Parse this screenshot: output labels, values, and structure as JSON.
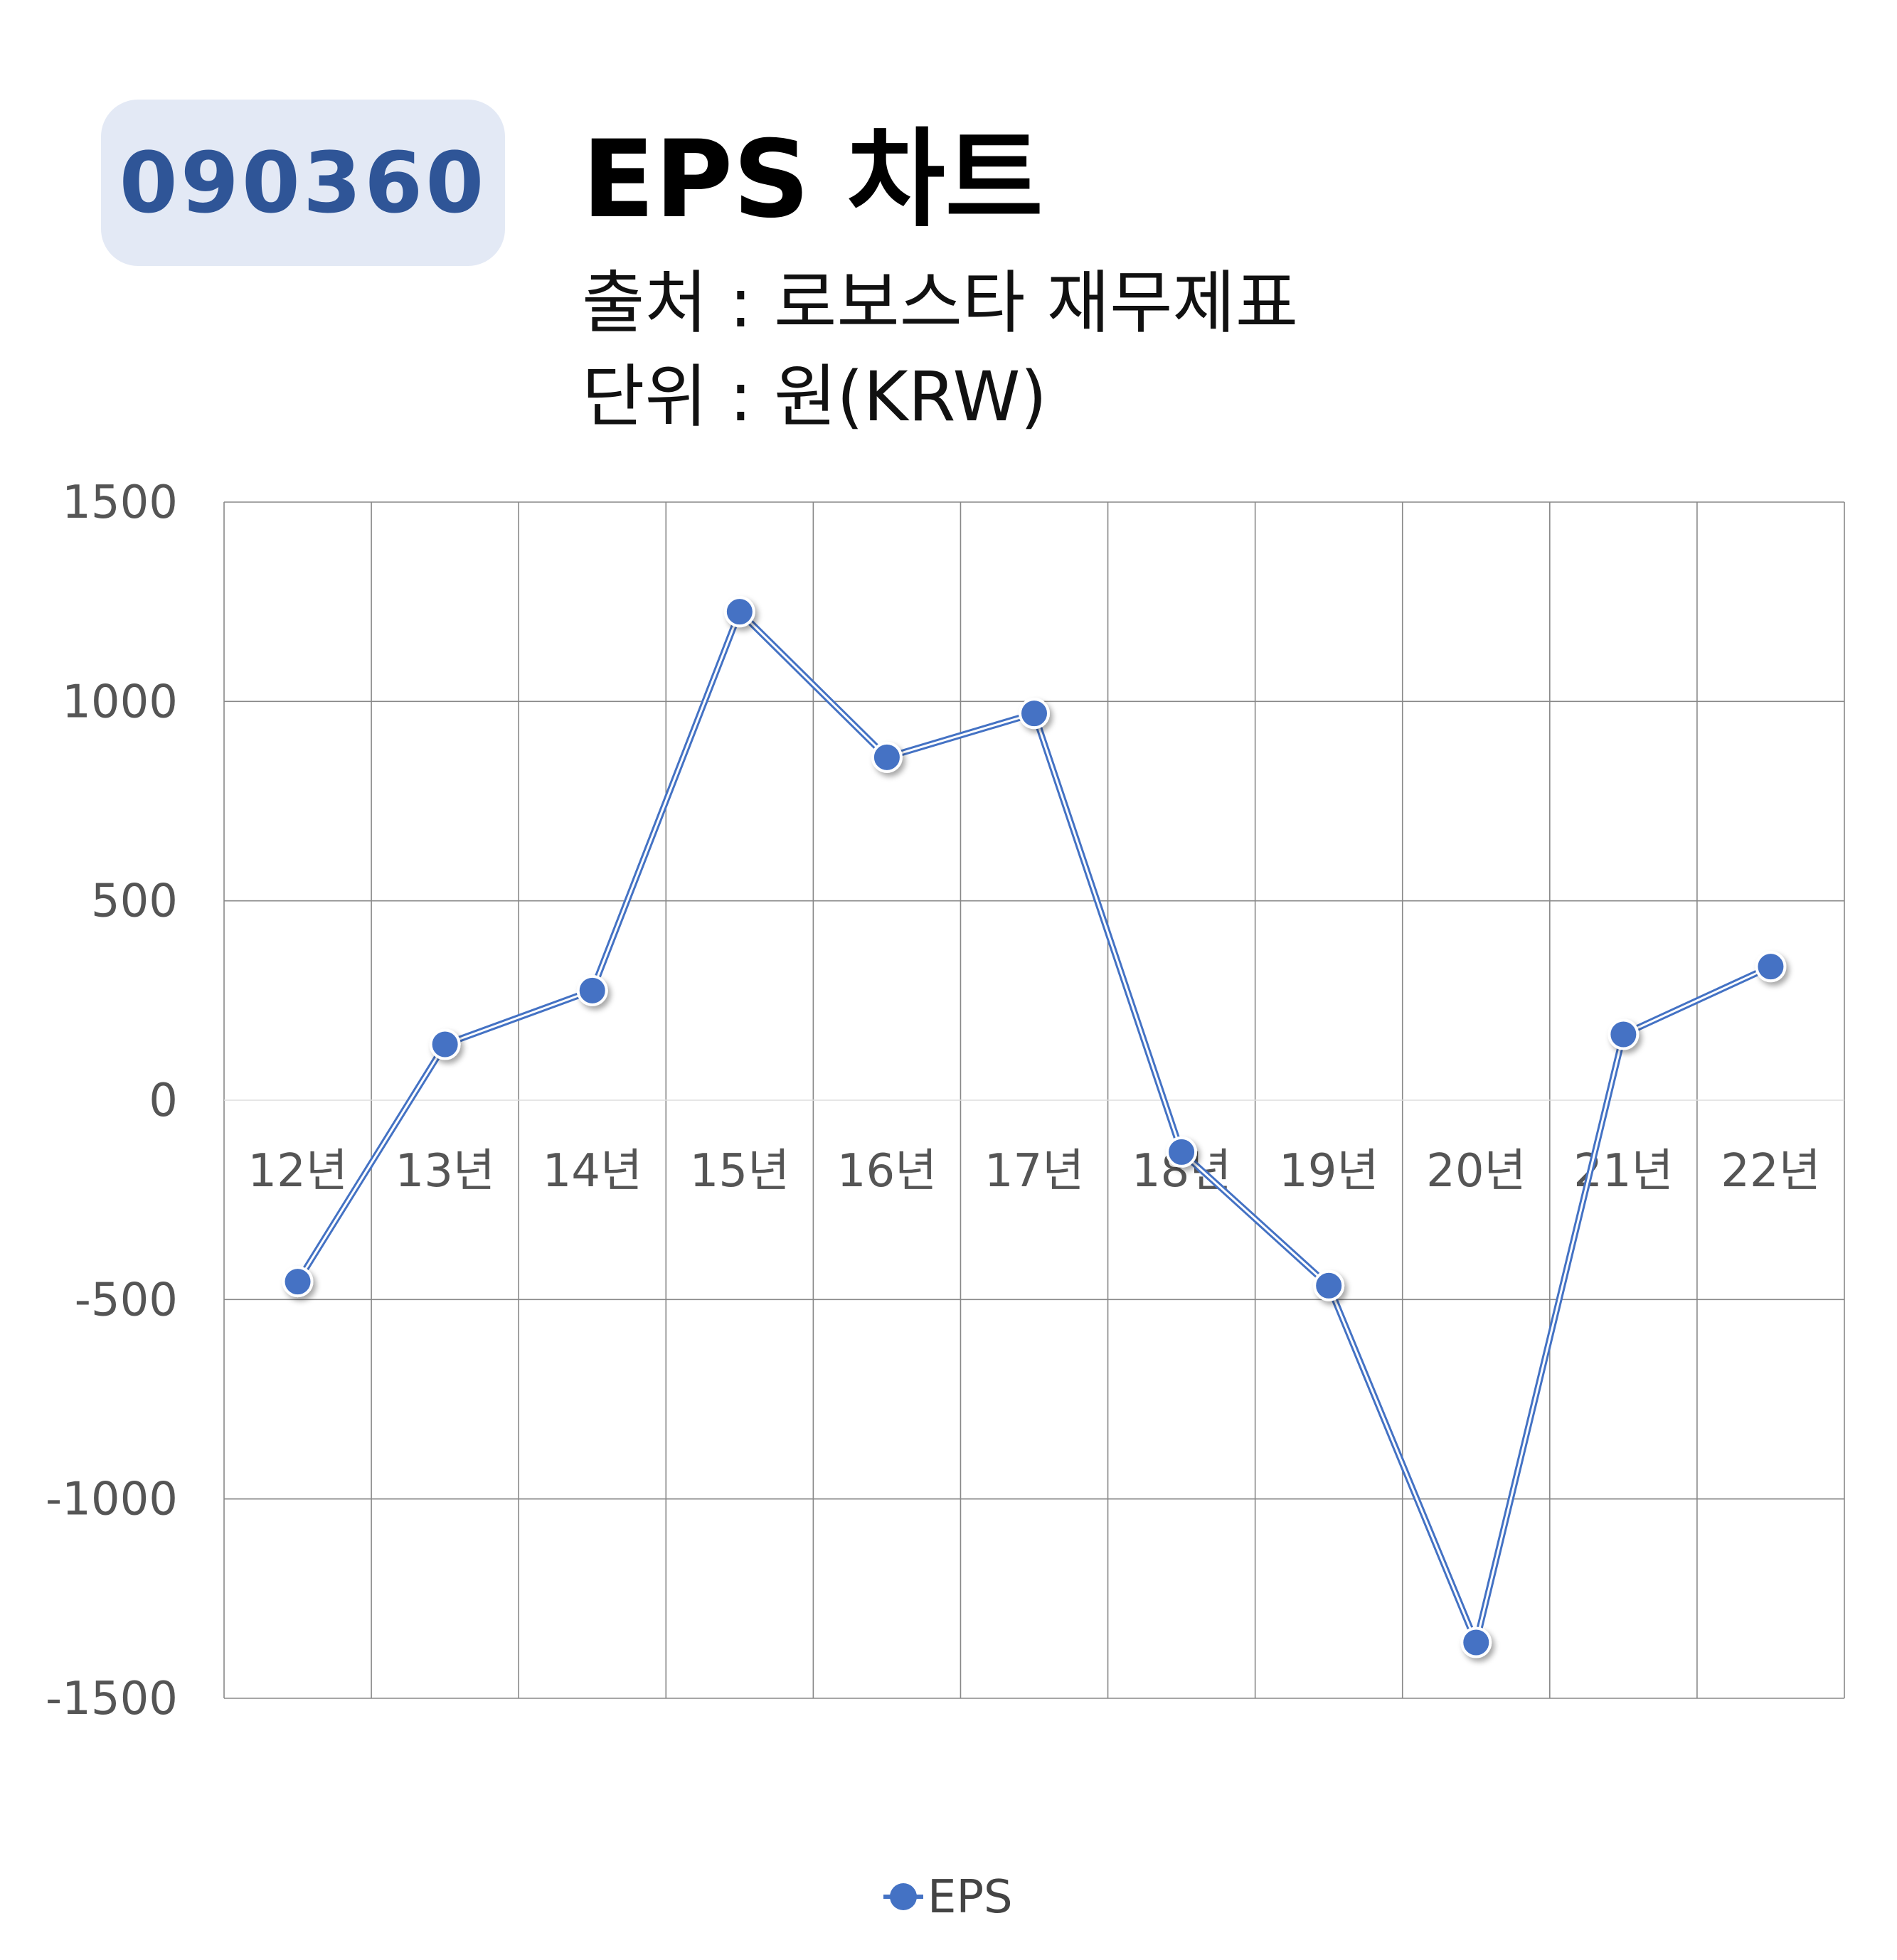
{
  "header": {
    "code_badge": "090360",
    "title": "EPS 차트",
    "source_line": "출처 : 로보스타 재무제표",
    "unit_line": "단위 : 원(KRW)"
  },
  "colors": {
    "series": "#4472c4",
    "badge_bg": "#e3e9f5",
    "badge_text": "#2f5597",
    "grid": "#888888"
  },
  "chart_data": {
    "type": "line",
    "title": "EPS 차트",
    "categories": [
      "12년",
      "13년",
      "14년",
      "15년",
      "16년",
      "17년",
      "18년",
      "19년",
      "20년",
      "21년",
      "22년"
    ],
    "series": [
      {
        "name": "EPS",
        "values": [
          -455,
          140,
          275,
          1225,
          860,
          970,
          -130,
          -465,
          -1360,
          165,
          335
        ]
      }
    ],
    "y_ticks": [
      1500,
      1000,
      500,
      0,
      -500,
      -1000,
      -1500
    ],
    "ylim": [
      -1500,
      1500
    ],
    "grid": true,
    "legend": "bottom-center"
  }
}
